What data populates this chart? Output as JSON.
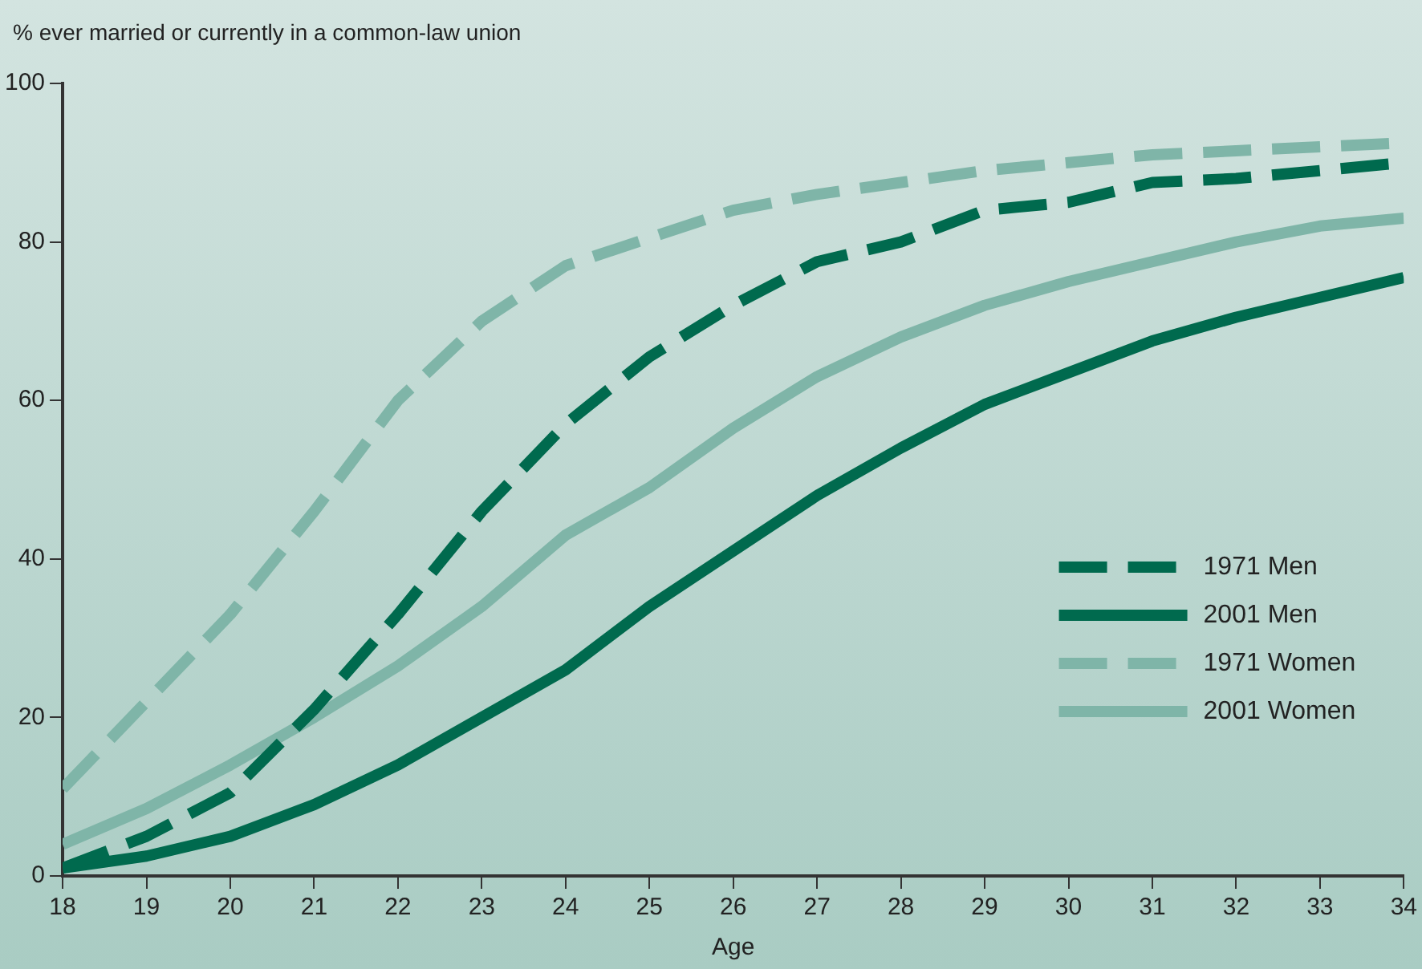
{
  "chart_data": {
    "type": "line",
    "ylabel": "% ever married or currently in a common-law union",
    "xlabel": "Age",
    "x": [
      18,
      19,
      20,
      21,
      22,
      23,
      24,
      25,
      26,
      27,
      28,
      29,
      30,
      31,
      32,
      33,
      34
    ],
    "xlim": [
      18,
      34
    ],
    "xticks": [
      18,
      19,
      20,
      21,
      22,
      23,
      24,
      25,
      26,
      27,
      28,
      29,
      30,
      31,
      32,
      33,
      34
    ],
    "ylim": [
      0,
      100
    ],
    "yticks": [
      0,
      20,
      40,
      60,
      80,
      100
    ],
    "grid": false,
    "legend": "right",
    "marker": "none",
    "series": [
      {
        "name": "1971 Men",
        "color": "#006a4e",
        "line_style": "dashed",
        "values": [
          1,
          5,
          10.5,
          21,
          33,
          46,
          57,
          65.5,
          72,
          77.5,
          80,
          84,
          85,
          87.5,
          88,
          89,
          90
        ]
      },
      {
        "name": "2001 Men",
        "color": "#006a4e",
        "line_style": "solid",
        "values": [
          1,
          2.5,
          5,
          9,
          14,
          20,
          26,
          34,
          41,
          48,
          54,
          59.5,
          63.5,
          67.5,
          70.5,
          73,
          75.5
        ]
      },
      {
        "name": "1971 Women",
        "color": "#7fb5a8",
        "line_style": "dashed",
        "values": [
          11,
          22,
          33,
          46,
          60,
          70,
          77,
          80.5,
          84,
          86,
          87.5,
          89,
          90,
          91,
          91.5,
          92,
          92.5
        ]
      },
      {
        "name": "2001 Women",
        "color": "#7fb5a8",
        "line_style": "solid",
        "values": [
          4,
          8.5,
          14,
          20,
          26.5,
          34,
          43,
          49,
          56.5,
          63,
          68,
          72,
          75,
          77.5,
          80,
          82,
          83
        ]
      }
    ]
  }
}
